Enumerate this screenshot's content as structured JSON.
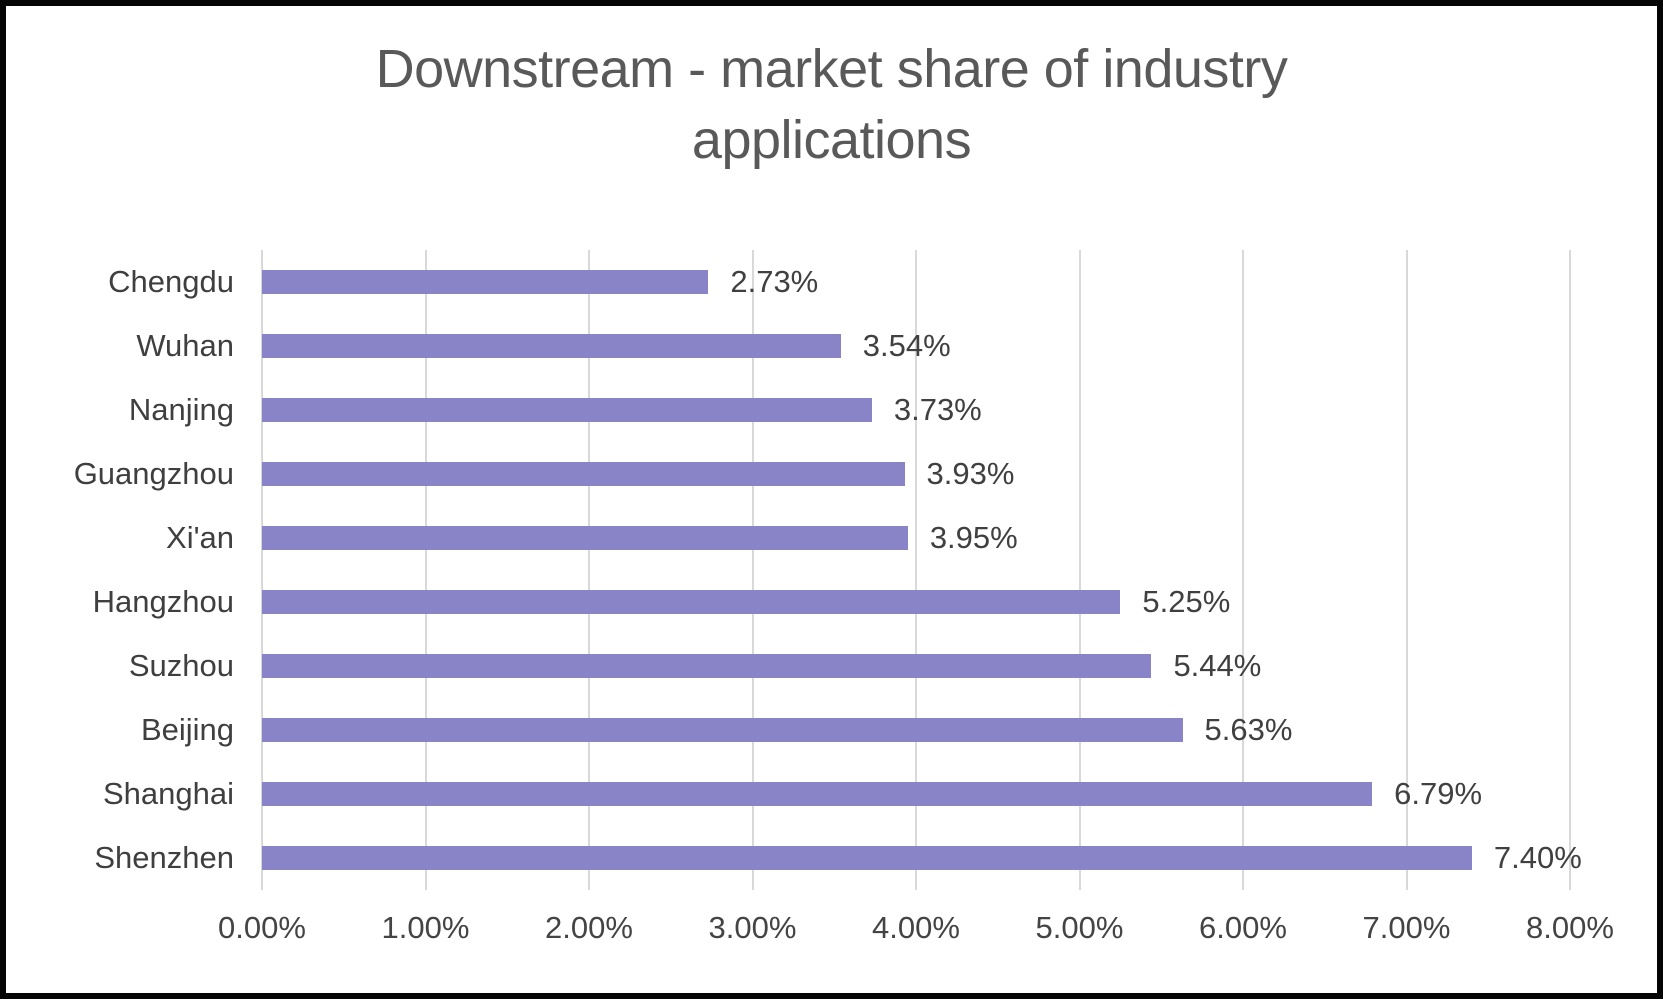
{
  "frame": {
    "background": "#ffffff",
    "border_color": "#050505"
  },
  "chart_data": {
    "type": "bar",
    "orientation": "horizontal",
    "title": "Downstream - market share of industry applications",
    "categories": [
      "Chengdu",
      "Wuhan",
      "Nanjing",
      "Guangzhou",
      "Xi'an",
      "Hangzhou",
      "Suzhou",
      "Beijing",
      "Shanghai",
      "Shenzhen"
    ],
    "series": [
      {
        "name": "market share",
        "values": [
          2.73,
          3.54,
          3.73,
          3.93,
          3.95,
          5.25,
          5.44,
          5.63,
          6.79,
          7.4
        ],
        "value_labels": [
          "2.73%",
          "3.54%",
          "3.73%",
          "3.93%",
          "3.95%",
          "5.25%",
          "5.44%",
          "5.63%",
          "6.79%",
          "7.40%"
        ]
      }
    ],
    "xlabel": "",
    "ylabel": "",
    "x_ticks": [
      "0.00%",
      "1.00%",
      "2.00%",
      "3.00%",
      "4.00%",
      "5.00%",
      "6.00%",
      "7.00%",
      "8.00%"
    ],
    "xlim": [
      0,
      8
    ],
    "grid": true,
    "legend": false,
    "colors": {
      "bar": "#8884C7",
      "gridline": "#D9D9D9",
      "title": "#595959",
      "category_labels": "#3F3F3F",
      "value_labels": "#404040",
      "tick_labels": "#444444"
    }
  }
}
